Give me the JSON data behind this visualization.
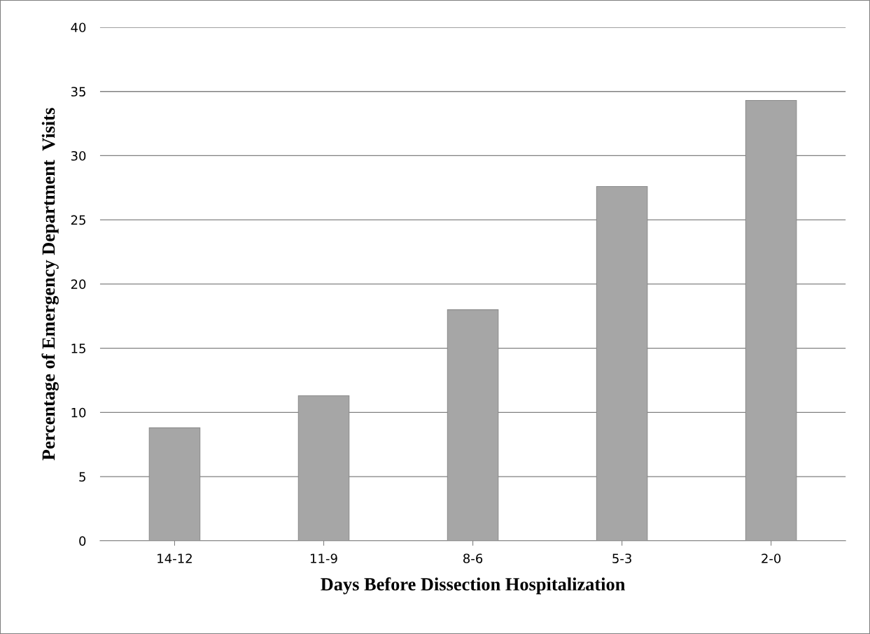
{
  "chart_data": {
    "type": "bar",
    "xlabel": "Days Before Dissection Hospitalization",
    "ylabel": "Percentage of Emergency Department  Visits",
    "categories": [
      "14-12",
      "11-9",
      "8-6",
      "5-3",
      "2-0"
    ],
    "values": [
      8.8,
      11.3,
      18.0,
      27.6,
      34.3
    ],
    "color": "#a6a6a6",
    "ylim": [
      0,
      40
    ],
    "yticks": [
      0,
      5,
      10,
      15,
      20,
      25,
      30,
      35,
      40
    ],
    "grid": "y",
    "legend": false
  }
}
